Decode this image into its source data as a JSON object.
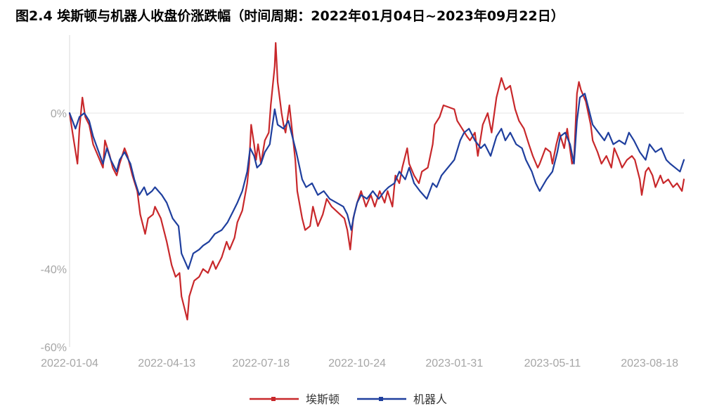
{
  "chart_data": {
    "type": "line",
    "title": "图2.4 埃斯顿与机器人收盘价涨跌幅（时间周期：2022年01月04日~2023年09月22日）",
    "xlabel": "",
    "ylabel": "",
    "x_tick_labels": [
      "2022-01-04",
      "2022-04-13",
      "2022-07-18",
      "2022-10-24",
      "2023-01-31",
      "2023-05-11",
      "2023-08-18"
    ],
    "y_tick_labels": [
      "0%",
      "-40%",
      "-60%"
    ],
    "y_ticks": [
      0,
      -40,
      -60
    ],
    "ylim": [
      -60,
      20
    ],
    "grid": "zero-line only",
    "legend_position": "bottom-center",
    "x_start": "2022-01-04",
    "x_end": "2023-09-22",
    "series": [
      {
        "name": "埃斯顿",
        "color": "#c8282b",
        "points": [
          [
            "2022-01-04",
            0
          ],
          [
            "2022-01-07",
            -5
          ],
          [
            "2022-01-12",
            -13
          ],
          [
            "2022-01-14",
            -4
          ],
          [
            "2022-01-17",
            4
          ],
          [
            "2022-01-20",
            -1
          ],
          [
            "2022-01-24",
            -3
          ],
          [
            "2022-01-28",
            -8
          ],
          [
            "2022-02-07",
            -14
          ],
          [
            "2022-02-09",
            -7
          ],
          [
            "2022-02-14",
            -11
          ],
          [
            "2022-02-17",
            -14
          ],
          [
            "2022-02-21",
            -16
          ],
          [
            "2022-02-24",
            -13
          ],
          [
            "2022-03-01",
            -9
          ],
          [
            "2022-03-04",
            -11
          ],
          [
            "2022-03-09",
            -16
          ],
          [
            "2022-03-14",
            -20
          ],
          [
            "2022-03-17",
            -26
          ],
          [
            "2022-03-22",
            -31
          ],
          [
            "2022-03-25",
            -27
          ],
          [
            "2022-03-30",
            -26
          ],
          [
            "2022-04-01",
            -24
          ],
          [
            "2022-04-07",
            -27
          ],
          [
            "2022-04-13",
            -33
          ],
          [
            "2022-04-18",
            -39
          ],
          [
            "2022-04-22",
            -42
          ],
          [
            "2022-04-26",
            -41
          ],
          [
            "2022-04-28",
            -47
          ],
          [
            "2022-05-04",
            -53
          ],
          [
            "2022-05-06",
            -47
          ],
          [
            "2022-05-11",
            -43
          ],
          [
            "2022-05-16",
            -42
          ],
          [
            "2022-05-20",
            -40
          ],
          [
            "2022-05-25",
            -41
          ],
          [
            "2022-05-30",
            -38
          ],
          [
            "2022-06-02",
            -40
          ],
          [
            "2022-06-08",
            -37
          ],
          [
            "2022-06-13",
            -33
          ],
          [
            "2022-06-16",
            -35
          ],
          [
            "2022-06-21",
            -32
          ],
          [
            "2022-06-24",
            -28
          ],
          [
            "2022-06-29",
            -25
          ],
          [
            "2022-07-04",
            -18
          ],
          [
            "2022-07-06",
            -13
          ],
          [
            "2022-07-08",
            -3
          ],
          [
            "2022-07-11",
            -8
          ],
          [
            "2022-07-13",
            -12
          ],
          [
            "2022-07-15",
            -8
          ],
          [
            "2022-07-18",
            -13
          ],
          [
            "2022-07-20",
            -10
          ],
          [
            "2022-07-22",
            -7
          ],
          [
            "2022-07-26",
            -5
          ],
          [
            "2022-07-28",
            2
          ],
          [
            "2022-08-01",
            12
          ],
          [
            "2022-08-02",
            18
          ],
          [
            "2022-08-04",
            8
          ],
          [
            "2022-08-08",
            0
          ],
          [
            "2022-08-10",
            -3
          ],
          [
            "2022-08-12",
            -5
          ],
          [
            "2022-08-16",
            2
          ],
          [
            "2022-08-19",
            -5
          ],
          [
            "2022-08-22",
            -12
          ],
          [
            "2022-08-24",
            -20
          ],
          [
            "2022-08-29",
            -27
          ],
          [
            "2022-09-01",
            -30
          ],
          [
            "2022-09-06",
            -29
          ],
          [
            "2022-09-09",
            -24
          ],
          [
            "2022-09-14",
            -29
          ],
          [
            "2022-09-19",
            -26
          ],
          [
            "2022-09-23",
            -22
          ],
          [
            "2022-09-28",
            -24
          ],
          [
            "2022-10-11",
            -27
          ],
          [
            "2022-10-14",
            -30
          ],
          [
            "2022-10-17",
            -35
          ],
          [
            "2022-10-20",
            -27
          ],
          [
            "2022-10-24",
            -23
          ],
          [
            "2022-10-28",
            -20
          ],
          [
            "2022-11-02",
            -24
          ],
          [
            "2022-11-07",
            -21
          ],
          [
            "2022-11-11",
            -24
          ],
          [
            "2022-11-16",
            -20
          ],
          [
            "2022-11-21",
            -23
          ],
          [
            "2022-11-24",
            -20
          ],
          [
            "2022-11-29",
            -24
          ],
          [
            "2022-12-02",
            -16
          ],
          [
            "2022-12-06",
            -18
          ],
          [
            "2022-12-09",
            -14
          ],
          [
            "2022-12-14",
            -9
          ],
          [
            "2022-12-16",
            -13
          ],
          [
            "2022-12-21",
            -16
          ],
          [
            "2022-12-26",
            -18
          ],
          [
            "2022-12-29",
            -15
          ],
          [
            "2023-01-04",
            -14
          ],
          [
            "2023-01-09",
            -8
          ],
          [
            "2023-01-11",
            -3
          ],
          [
            "2023-01-16",
            -1
          ],
          [
            "2023-01-20",
            2
          ],
          [
            "2023-01-31",
            1
          ],
          [
            "2023-02-03",
            -2
          ],
          [
            "2023-02-08",
            -4
          ],
          [
            "2023-02-13",
            -6
          ],
          [
            "2023-02-16",
            -7
          ],
          [
            "2023-02-21",
            -5
          ],
          [
            "2023-02-24",
            -11
          ],
          [
            "2023-03-01",
            -3
          ],
          [
            "2023-03-06",
            0
          ],
          [
            "2023-03-10",
            -5
          ],
          [
            "2023-03-15",
            4
          ],
          [
            "2023-03-20",
            9
          ],
          [
            "2023-03-24",
            6
          ],
          [
            "2023-03-29",
            7
          ],
          [
            "2023-04-03",
            1
          ],
          [
            "2023-04-07",
            -2
          ],
          [
            "2023-04-12",
            -4
          ],
          [
            "2023-04-17",
            -8
          ],
          [
            "2023-04-21",
            -11
          ],
          [
            "2023-04-26",
            -14
          ],
          [
            "2023-04-28",
            -13
          ],
          [
            "2023-05-04",
            -9
          ],
          [
            "2023-05-09",
            -10
          ],
          [
            "2023-05-11",
            -13
          ],
          [
            "2023-05-15",
            -8
          ],
          [
            "2023-05-18",
            -5
          ],
          [
            "2023-05-23",
            -9
          ],
          [
            "2023-05-26",
            -4
          ],
          [
            "2023-05-31",
            -13
          ],
          [
            "2023-06-02",
            -12
          ],
          [
            "2023-06-05",
            5
          ],
          [
            "2023-06-07",
            8
          ],
          [
            "2023-06-09",
            6
          ],
          [
            "2023-06-14",
            3
          ],
          [
            "2023-06-19",
            -3
          ],
          [
            "2023-06-21",
            -7
          ],
          [
            "2023-06-26",
            -10
          ],
          [
            "2023-06-30",
            -13
          ],
          [
            "2023-07-05",
            -11
          ],
          [
            "2023-07-10",
            -14
          ],
          [
            "2023-07-13",
            -9
          ],
          [
            "2023-07-18",
            -12
          ],
          [
            "2023-07-21",
            -14
          ],
          [
            "2023-07-26",
            -12
          ],
          [
            "2023-07-31",
            -11
          ],
          [
            "2023-08-03",
            -12
          ],
          [
            "2023-08-08",
            -17
          ],
          [
            "2023-08-10",
            -21
          ],
          [
            "2023-08-14",
            -15
          ],
          [
            "2023-08-17",
            -14
          ],
          [
            "2023-08-21",
            -16
          ],
          [
            "2023-08-24",
            -19
          ],
          [
            "2023-08-29",
            -16
          ],
          [
            "2023-09-01",
            -18
          ],
          [
            "2023-09-06",
            -17
          ],
          [
            "2023-09-11",
            -19
          ],
          [
            "2023-09-15",
            -18
          ],
          [
            "2023-09-20",
            -20
          ],
          [
            "2023-09-22",
            -17
          ]
        ]
      },
      {
        "name": "机器人",
        "color": "#1f3f9e",
        "points": [
          [
            "2022-01-04",
            0
          ],
          [
            "2022-01-10",
            -4
          ],
          [
            "2022-01-14",
            -1
          ],
          [
            "2022-01-19",
            0
          ],
          [
            "2022-01-24",
            -2
          ],
          [
            "2022-01-28",
            -6
          ],
          [
            "2022-02-07",
            -13
          ],
          [
            "2022-02-11",
            -9
          ],
          [
            "2022-02-15",
            -12
          ],
          [
            "2022-02-21",
            -15
          ],
          [
            "2022-02-24",
            -12
          ],
          [
            "2022-03-01",
            -10
          ],
          [
            "2022-03-07",
            -13
          ],
          [
            "2022-03-11",
            -17
          ],
          [
            "2022-03-16",
            -21
          ],
          [
            "2022-03-21",
            -19
          ],
          [
            "2022-03-24",
            -21
          ],
          [
            "2022-03-29",
            -20
          ],
          [
            "2022-04-01",
            -19
          ],
          [
            "2022-04-08",
            -21
          ],
          [
            "2022-04-13",
            -23
          ],
          [
            "2022-04-19",
            -27
          ],
          [
            "2022-04-25",
            -29
          ],
          [
            "2022-04-28",
            -36
          ],
          [
            "2022-05-05",
            -40
          ],
          [
            "2022-05-10",
            -36
          ],
          [
            "2022-05-16",
            -35
          ],
          [
            "2022-05-20",
            -34
          ],
          [
            "2022-05-26",
            -33
          ],
          [
            "2022-06-01",
            -31
          ],
          [
            "2022-06-08",
            -30
          ],
          [
            "2022-06-14",
            -28
          ],
          [
            "2022-06-20",
            -25
          ],
          [
            "2022-06-24",
            -23
          ],
          [
            "2022-06-29",
            -20
          ],
          [
            "2022-07-04",
            -15
          ],
          [
            "2022-07-07",
            -9
          ],
          [
            "2022-07-11",
            -11
          ],
          [
            "2022-07-14",
            -14
          ],
          [
            "2022-07-18",
            -13
          ],
          [
            "2022-07-22",
            -10
          ],
          [
            "2022-07-27",
            -8
          ],
          [
            "2022-08-01",
            1
          ],
          [
            "2022-08-04",
            -3
          ],
          [
            "2022-08-10",
            -4
          ],
          [
            "2022-08-15",
            -2
          ],
          [
            "2022-08-18",
            -5
          ],
          [
            "2022-08-23",
            -10
          ],
          [
            "2022-08-29",
            -17
          ],
          [
            "2022-09-02",
            -19
          ],
          [
            "2022-09-08",
            -18
          ],
          [
            "2022-09-14",
            -21
          ],
          [
            "2022-09-20",
            -20
          ],
          [
            "2022-09-26",
            -22
          ],
          [
            "2022-10-10",
            -24
          ],
          [
            "2022-10-14",
            -26
          ],
          [
            "2022-10-18",
            -30
          ],
          [
            "2022-10-21",
            -26
          ],
          [
            "2022-10-24",
            -23
          ],
          [
            "2022-10-28",
            -21
          ],
          [
            "2022-11-03",
            -22
          ],
          [
            "2022-11-09",
            -20
          ],
          [
            "2022-11-15",
            -22
          ],
          [
            "2022-11-21",
            -20
          ],
          [
            "2022-11-25",
            -19
          ],
          [
            "2022-12-01",
            -18
          ],
          [
            "2022-12-06",
            -15
          ],
          [
            "2022-12-12",
            -17
          ],
          [
            "2022-12-16",
            -14
          ],
          [
            "2022-12-21",
            -18
          ],
          [
            "2022-12-27",
            -20
          ],
          [
            "2023-01-03",
            -22
          ],
          [
            "2023-01-09",
            -18
          ],
          [
            "2023-01-13",
            -19
          ],
          [
            "2023-01-18",
            -16
          ],
          [
            "2023-01-31",
            -12
          ],
          [
            "2023-02-06",
            -7
          ],
          [
            "2023-02-10",
            -5
          ],
          [
            "2023-02-15",
            -4
          ],
          [
            "2023-02-21",
            -7
          ],
          [
            "2023-02-27",
            -9
          ],
          [
            "2023-03-03",
            -8
          ],
          [
            "2023-03-09",
            -11
          ],
          [
            "2023-03-15",
            -6
          ],
          [
            "2023-03-20",
            -4
          ],
          [
            "2023-03-24",
            -7
          ],
          [
            "2023-03-29",
            -5
          ],
          [
            "2023-04-04",
            -8
          ],
          [
            "2023-04-10",
            -9
          ],
          [
            "2023-04-14",
            -12
          ],
          [
            "2023-04-20",
            -15
          ],
          [
            "2023-04-24",
            -18
          ],
          [
            "2023-04-28",
            -20
          ],
          [
            "2023-05-05",
            -17
          ],
          [
            "2023-05-11",
            -15
          ],
          [
            "2023-05-16",
            -10
          ],
          [
            "2023-05-19",
            -6
          ],
          [
            "2023-05-24",
            -5
          ],
          [
            "2023-05-29",
            -8
          ],
          [
            "2023-06-02",
            -13
          ],
          [
            "2023-06-05",
            -2
          ],
          [
            "2023-06-08",
            4
          ],
          [
            "2023-06-13",
            5
          ],
          [
            "2023-06-16",
            2
          ],
          [
            "2023-06-21",
            -3
          ],
          [
            "2023-06-27",
            -5
          ],
          [
            "2023-07-03",
            -7
          ],
          [
            "2023-07-07",
            -5
          ],
          [
            "2023-07-12",
            -8
          ],
          [
            "2023-07-18",
            -7
          ],
          [
            "2023-07-24",
            -8
          ],
          [
            "2023-07-28",
            -5
          ],
          [
            "2023-08-02",
            -7
          ],
          [
            "2023-08-08",
            -10
          ],
          [
            "2023-08-14",
            -12
          ],
          [
            "2023-08-18",
            -8
          ],
          [
            "2023-08-24",
            -10
          ],
          [
            "2023-08-30",
            -9
          ],
          [
            "2023-09-04",
            -12
          ],
          [
            "2023-09-08",
            -13
          ],
          [
            "2023-09-13",
            -14
          ],
          [
            "2023-09-18",
            -15
          ],
          [
            "2023-09-22",
            -12
          ]
        ]
      }
    ]
  }
}
